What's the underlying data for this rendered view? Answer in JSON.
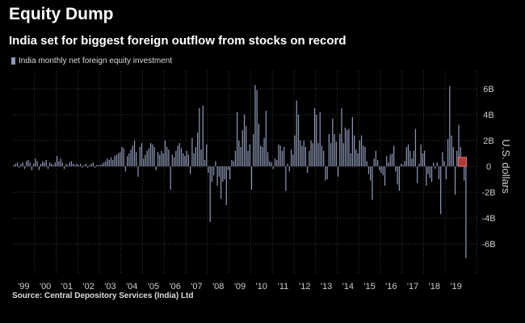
{
  "chart_data": {
    "type": "bar",
    "title": "Equity Dump",
    "subtitle": "India set for biggest foreign outflow from stocks on record",
    "legend": "India monthly net foreign equity investment",
    "source": "Source: Central Depository Services (India) Ltd",
    "ylabel": "U.S. dollars",
    "ylim": [
      -8,
      8
    ],
    "yticks": [
      {
        "value": 6,
        "label": "6B"
      },
      {
        "value": 4,
        "label": "4B"
      },
      {
        "value": 2,
        "label": "2B"
      },
      {
        "value": 0,
        "label": "0"
      },
      {
        "value": -2,
        "label": "-2B"
      },
      {
        "value": -4,
        "label": "-4B"
      },
      {
        "value": -6,
        "label": "-6B"
      }
    ],
    "x_start_year": 1999,
    "months_per_year": 12,
    "xticks": [
      "'99",
      "'00",
      "'01",
      "'02",
      "'03",
      "'04",
      "'05",
      "'06",
      "'07",
      "'08",
      "'09",
      "'10",
      "'11",
      "'12",
      "'13",
      "'14",
      "'15",
      "'16",
      "'17",
      "'18",
      "'19"
    ],
    "colors": {
      "bar": "#8d97b5",
      "highlight_fill": "#b23a3a",
      "highlight_stroke": "#e07878"
    },
    "highlight_index": 249,
    "series": [
      {
        "name": "India monthly net foreign equity investment",
        "values": [
          0.1,
          0.2,
          0.3,
          -0.1,
          0.2,
          0.3,
          -0.2,
          0.4,
          0.5,
          0.3,
          -0.3,
          0.2,
          0.6,
          0.4,
          -0.3,
          0.2,
          0.4,
          0.3,
          0.5,
          -0.2,
          0.3,
          0.2,
          0.1,
          0.3,
          0.8,
          0.4,
          0.6,
          0.3,
          -0.2,
          0.2,
          0.1,
          0.3,
          0.4,
          0.2,
          0.1,
          0.2,
          0.1,
          0.2,
          -0.1,
          0.1,
          0.2,
          -0.1,
          0.1,
          0.2,
          0.3,
          -0.1,
          0.1,
          0.1,
          0.1,
          0.2,
          0.3,
          0.4,
          0.6,
          0.5,
          0.7,
          0.5,
          0.8,
          0.9,
          1.0,
          1.1,
          1.5,
          1.4,
          -0.4,
          0.8,
          1.0,
          1.3,
          1.6,
          2.0,
          1.1,
          -0.8,
          1.5,
          1.8,
          0.6,
          0.9,
          1.2,
          1.4,
          1.8,
          1.7,
          1.5,
          -0.3,
          1.1,
          0.9,
          1.2,
          1.0,
          2.0,
          1.5,
          1.3,
          -1.8,
          0.9,
          0.7,
          1.2,
          1.6,
          1.8,
          1.4,
          1.0,
          0.8,
          1.2,
          0.9,
          -0.6,
          2.2,
          1.0,
          1.5,
          2.6,
          4.5,
          1.3,
          4.7,
          0.5,
          1.7,
          -0.5,
          -4.3,
          -1.2,
          -0.7,
          0.4,
          -1.5,
          -0.8,
          -2.5,
          -1.2,
          -1.0,
          -3.0,
          -0.3,
          -1.0,
          0.5,
          0.4,
          1.2,
          4.2,
          2.0,
          1.5,
          2.8,
          4.0,
          3.1,
          1.2,
          1.7,
          -1.8,
          2.5,
          6.3,
          5.9,
          3.3,
          1.6,
          1.5,
          2.2,
          4.3,
          1.1,
          0.4,
          0.3,
          -0.2,
          0.6,
          0.5,
          1.7,
          1.6,
          1.2,
          1.5,
          -1.9,
          0.2,
          -0.4,
          1.3,
          0.9,
          2.4,
          5.1,
          4.0,
          2.0,
          1.6,
          2.0,
          1.5,
          -0.5,
          1.2,
          2.0,
          1.8,
          4.5,
          4.0,
          1.8,
          4.2,
          1.6,
          1.2,
          -1.1,
          -1.0,
          2.5,
          1.8,
          3.7,
          2.5,
          1.9,
          -0.8,
          2.5,
          4.5,
          1.8,
          3.0,
          2.8,
          2.9,
          1.0,
          3.8,
          2.4,
          1.3,
          1.0,
          2.0,
          2.4,
          1.6,
          1.5,
          0.4,
          -0.6,
          -1.1,
          -2.6,
          0.6,
          1.2,
          0.5,
          -0.3,
          -0.5,
          -0.7,
          -1.5,
          0.8,
          0.3,
          0.9,
          1.0,
          1.6,
          -0.4,
          -1.4,
          -1.9,
          0.2,
          0.1,
          0.4,
          1.5,
          1.7,
          1.2,
          0.6,
          1.2,
          2.9,
          -1.3,
          0.2,
          1.7,
          1.0,
          1.2,
          -1.5,
          -0.6,
          -0.9,
          -1.2,
          0.3,
          -0.2,
          0.3,
          -1.0,
          -3.7,
          1.1,
          0.4,
          -1.0,
          2.1,
          6.2,
          2.4,
          1.5,
          -2.2,
          1.2,
          3.2,
          1.5,
          0.7,
          -1.1,
          -7.1
        ]
      }
    ]
  }
}
